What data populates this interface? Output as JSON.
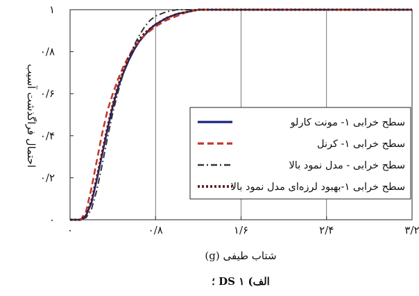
{
  "chart_data": {
    "type": "line",
    "xlabel": "شتاب طیفی (g)",
    "ylabel": "احتمال فراگذشت آسیب",
    "caption": "الف) DS ۱ ؛",
    "xlim": [
      0,
      3.2
    ],
    "ylim": [
      0,
      1
    ],
    "x_ticks": [
      0,
      0.8,
      1.6,
      2.4,
      3.2
    ],
    "x_tick_labels": [
      "۰",
      "۰/۸",
      "۱/۶",
      "۲/۴",
      "۳/۲"
    ],
    "y_ticks": [
      0,
      0.2,
      0.4,
      0.6,
      0.8,
      1
    ],
    "y_tick_labels": [
      "۰",
      "۰/۲",
      "۰/۴",
      "۰/۶",
      "۰/۸",
      "۱"
    ],
    "legend_position": "right",
    "series": [
      {
        "name": "سطح خرابی ۱- مونت کارلو",
        "color": "#1a237e",
        "style": "solid",
        "points": [
          [
            0,
            0
          ],
          [
            0.1,
            0
          ],
          [
            0.15,
            0.02
          ],
          [
            0.2,
            0.08
          ],
          [
            0.25,
            0.19
          ],
          [
            0.3,
            0.31
          ],
          [
            0.35,
            0.43
          ],
          [
            0.4,
            0.54
          ],
          [
            0.45,
            0.63
          ],
          [
            0.5,
            0.7
          ],
          [
            0.55,
            0.76
          ],
          [
            0.6,
            0.81
          ],
          [
            0.65,
            0.85
          ],
          [
            0.7,
            0.88
          ],
          [
            0.75,
            0.91
          ],
          [
            0.8,
            0.93
          ],
          [
            0.9,
            0.96
          ],
          [
            1.0,
            0.98
          ],
          [
            1.1,
            0.99
          ],
          [
            1.2,
            1.0
          ],
          [
            3.2,
            1.0
          ]
        ]
      },
      {
        "name": "سطح خرابی ۱- کرنل",
        "color": "#c0392b",
        "style": "dashed",
        "points": [
          [
            0,
            0
          ],
          [
            0.1,
            0
          ],
          [
            0.15,
            0.04
          ],
          [
            0.2,
            0.15
          ],
          [
            0.25,
            0.28
          ],
          [
            0.3,
            0.41
          ],
          [
            0.35,
            0.52
          ],
          [
            0.4,
            0.6
          ],
          [
            0.45,
            0.67
          ],
          [
            0.5,
            0.73
          ],
          [
            0.55,
            0.78
          ],
          [
            0.6,
            0.82
          ],
          [
            0.65,
            0.85
          ],
          [
            0.7,
            0.88
          ],
          [
            0.75,
            0.9
          ],
          [
            0.8,
            0.92
          ],
          [
            0.9,
            0.95
          ],
          [
            1.0,
            0.97
          ],
          [
            1.1,
            0.99
          ],
          [
            1.2,
            1.0
          ],
          [
            3.2,
            1.0
          ]
        ]
      },
      {
        "name": "سطح خرابی - مدل نمود بالا",
        "color": "#333333",
        "style": "dashdot",
        "points": [
          [
            0,
            0
          ],
          [
            0.1,
            0
          ],
          [
            0.15,
            0.01
          ],
          [
            0.2,
            0.05
          ],
          [
            0.25,
            0.14
          ],
          [
            0.3,
            0.26
          ],
          [
            0.35,
            0.39
          ],
          [
            0.4,
            0.51
          ],
          [
            0.45,
            0.61
          ],
          [
            0.5,
            0.7
          ],
          [
            0.55,
            0.77
          ],
          [
            0.6,
            0.83
          ],
          [
            0.65,
            0.88
          ],
          [
            0.7,
            0.92
          ],
          [
            0.75,
            0.95
          ],
          [
            0.8,
            0.97
          ],
          [
            0.85,
            0.98
          ],
          [
            0.9,
            0.99
          ],
          [
            1.0,
            1.0
          ],
          [
            3.2,
            1.0
          ]
        ]
      },
      {
        "name": "سطح خرابی ۱-بهبود لرزه‌ای مدل نمود بالا",
        "color": "#5b1a1a",
        "style": "dotted",
        "points": [
          [
            0,
            0
          ],
          [
            0.1,
            0
          ],
          [
            0.15,
            0.02
          ],
          [
            0.2,
            0.09
          ],
          [
            0.25,
            0.2
          ],
          [
            0.3,
            0.32
          ],
          [
            0.35,
            0.44
          ],
          [
            0.4,
            0.55
          ],
          [
            0.45,
            0.64
          ],
          [
            0.5,
            0.71
          ],
          [
            0.55,
            0.77
          ],
          [
            0.6,
            0.82
          ],
          [
            0.65,
            0.86
          ],
          [
            0.7,
            0.89
          ],
          [
            0.75,
            0.91
          ],
          [
            0.8,
            0.93
          ],
          [
            0.9,
            0.96
          ],
          [
            1.0,
            0.98
          ],
          [
            1.1,
            0.99
          ],
          [
            1.2,
            1.0
          ],
          [
            3.2,
            1.0
          ]
        ]
      }
    ]
  }
}
